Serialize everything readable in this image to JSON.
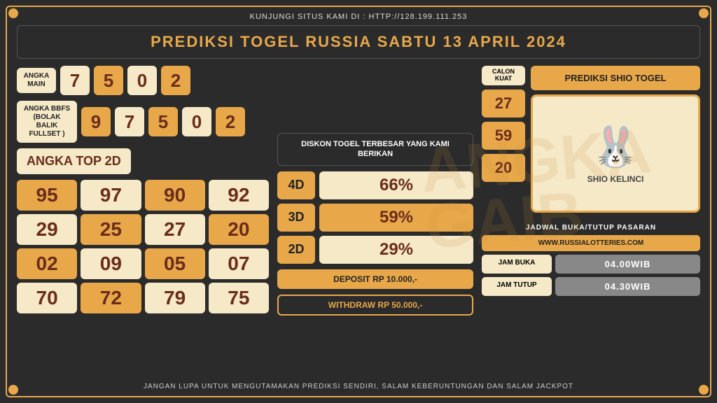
{
  "header_text": "KUNJUNGI SITUS KAMI DI : HTTP://128.199.111.253",
  "title": "PREDIKSI TOGEL RUSSIA SABTU 13 APRIL 2024",
  "angka_main": {
    "label": "ANGKA MAIN",
    "nums": [
      "7",
      "5",
      "0",
      "2"
    ],
    "colors": [
      "c",
      "o",
      "c",
      "o"
    ]
  },
  "bbfs": {
    "label": "ANGKA BBFS (BOLAK BALIK FULLSET )",
    "nums": [
      "9",
      "7",
      "5",
      "0",
      "2"
    ],
    "colors": [
      "o",
      "c",
      "o",
      "c",
      "o"
    ]
  },
  "top2d": {
    "label": "ANGKA TOP 2D",
    "cells": [
      "95",
      "97",
      "90",
      "92",
      "29",
      "25",
      "27",
      "20",
      "02",
      "09",
      "05",
      "07",
      "70",
      "72",
      "79",
      "75"
    ],
    "cell_colors": [
      "o",
      "c",
      "o",
      "c",
      "c",
      "o",
      "c",
      "o",
      "o",
      "c",
      "o",
      "c",
      "c",
      "o",
      "c",
      "c"
    ]
  },
  "diskon": {
    "header": "DISKON TOGEL TERBESAR YANG KAMI BERIKAN",
    "rows": [
      {
        "lbl": "4D",
        "val": "66%",
        "bg": "#f5e9c8"
      },
      {
        "lbl": "3D",
        "val": "59%",
        "bg": "#e8a84a"
      },
      {
        "lbl": "2D",
        "val": "29%",
        "bg": "#f5e9c8"
      }
    ],
    "deposit": "DEPOSIT RP 10.000,-",
    "withdraw": "WITHDRAW RP 50.000,-"
  },
  "calon": {
    "label": "CALON KUAT",
    "nums": [
      "27",
      "59",
      "20"
    ]
  },
  "shio": {
    "header": "PREDIKSI SHIO TOGEL",
    "name": "SHIO KELINCI"
  },
  "schedule": {
    "header": "JADWAL BUKA/TUTUP PASARAN",
    "site": "WWW.RUSSIALOTTERIES.COM",
    "buka_lbl": "JAM BUKA",
    "buka_val": "04.00WIB",
    "tutup_lbl": "JAM TUTUP",
    "tutup_val": "04.30WIB"
  },
  "footer": "JANGAN LUPA UNTUK MENGUTAMAKAN PREDIKSI SENDIRI, SALAM KEBERUNTUNGAN DAN SALAM JACKPOT",
  "colors": {
    "cream": "#f5e9c8",
    "orange": "#e8a84a",
    "darkred": "#6b2c1a"
  }
}
